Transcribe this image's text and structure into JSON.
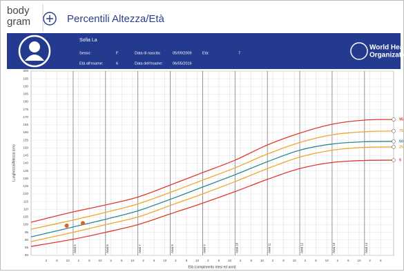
{
  "header": {
    "logo_top": "body",
    "logo_bottom": "gram",
    "title": "Percentili Altezza/Età"
  },
  "patient": {
    "name": "Sofia La",
    "fields": [
      {
        "label": "Sesso:",
        "value": "F"
      },
      {
        "label": "Data di nascita:",
        "value": "05/09/2009"
      },
      {
        "label": "Età:",
        "value": "7"
      },
      {
        "label": "Età all'esame:",
        "value": "6"
      },
      {
        "label": "Data dell'esame:",
        "value": "06/05/2016"
      }
    ]
  },
  "org": {
    "line1": "World Health",
    "line2": "Organization"
  },
  "chart_data": {
    "type": "line",
    "xlabel": "Età (compimento mesi ed anni)",
    "ylabel": "Lunghezza/Altezza (cm)",
    "xlim": [
      3.7,
      14.9
    ],
    "ylim": [
      80,
      200
    ],
    "yticks": [
      80,
      85,
      90,
      95,
      100,
      105,
      110,
      115,
      120,
      125,
      130,
      135,
      140,
      145,
      150,
      155,
      160,
      165,
      170,
      175,
      180,
      185,
      190,
      195,
      200
    ],
    "xticks": [
      {
        "value": 5,
        "label": "Anni 5"
      },
      {
        "value": 6,
        "label": "Anni 6"
      },
      {
        "value": 7,
        "label": "Anni 7"
      },
      {
        "value": 8,
        "label": "Anni 8"
      },
      {
        "value": 9,
        "label": "Anni 9"
      },
      {
        "value": 10,
        "label": "Anni 10"
      },
      {
        "value": 11,
        "label": "Anni 11"
      },
      {
        "value": 12,
        "label": "Anni 12"
      },
      {
        "value": 13,
        "label": "Anni 13"
      },
      {
        "value": 14,
        "label": "Anni 14"
      }
    ],
    "minor_xticks": [
      {
        "value": 4.1667,
        "label": "2"
      },
      {
        "value": 4.5,
        "label": "6"
      },
      {
        "value": 4.8333,
        "label": "10"
      },
      {
        "value": 5.1667,
        "label": "2"
      },
      {
        "value": 5.5,
        "label": "6"
      },
      {
        "value": 5.8333,
        "label": "10"
      },
      {
        "value": 6.1667,
        "label": "2"
      },
      {
        "value": 6.5,
        "label": "6"
      },
      {
        "value": 6.8333,
        "label": "10"
      },
      {
        "value": 7.1667,
        "label": "2"
      },
      {
        "value": 7.5,
        "label": "6"
      },
      {
        "value": 7.8333,
        "label": "10"
      },
      {
        "value": 8.1667,
        "label": "2"
      },
      {
        "value": 8.5,
        "label": "6"
      },
      {
        "value": 8.8333,
        "label": "10"
      },
      {
        "value": 9.1667,
        "label": "2"
      },
      {
        "value": 9.5,
        "label": "6"
      },
      {
        "value": 9.8333,
        "label": "10"
      },
      {
        "value": 10.1667,
        "label": "2"
      },
      {
        "value": 10.5,
        "label": "6"
      },
      {
        "value": 10.8333,
        "label": "10"
      },
      {
        "value": 11.1667,
        "label": "2"
      },
      {
        "value": 11.5,
        "label": "6"
      },
      {
        "value": 11.8333,
        "label": "10"
      },
      {
        "value": 12.1667,
        "label": "2"
      },
      {
        "value": 12.5,
        "label": "6"
      },
      {
        "value": 12.8333,
        "label": "10"
      },
      {
        "value": 13.1667,
        "label": "2"
      },
      {
        "value": 13.5,
        "label": "6"
      },
      {
        "value": 13.8333,
        "label": "10"
      },
      {
        "value": 14.1667,
        "label": "2"
      },
      {
        "value": 14.5,
        "label": "6"
      }
    ],
    "x": [
      3.7,
      5,
      6,
      7,
      8,
      9,
      10,
      11,
      12,
      13,
      14,
      14.9
    ],
    "series": [
      {
        "name": "95",
        "color": "#e2382c",
        "values": [
          101.6,
          108.3,
          112.8,
          118,
          125.8,
          133.9,
          142,
          151.9,
          159.6,
          165.4,
          168.1,
          168.5
        ]
      },
      {
        "name": "75",
        "color": "#f0a52c",
        "values": [
          97,
          103,
          108,
          113.5,
          121,
          129,
          137,
          146,
          153.5,
          158.5,
          160.5,
          161
        ]
      },
      {
        "name": "50",
        "color": "#2b8796",
        "values": [
          92,
          98.5,
          103.5,
          109,
          116.5,
          124.5,
          132.5,
          141,
          148.5,
          152.5,
          154,
          154.2
        ]
      },
      {
        "name": "25",
        "color": "#f0a52c",
        "values": [
          89,
          95,
          100,
          105,
          112.5,
          120,
          128,
          136.5,
          144,
          148.5,
          150.3,
          150.6
        ]
      },
      {
        "name": "5",
        "color": "#e2382c",
        "values": [
          85.8,
          90.5,
          95,
          100,
          107,
          114,
          121.5,
          129.5,
          136.5,
          140.5,
          141.8,
          142
        ]
      }
    ],
    "measurements": {
      "x": [
        4.8,
        5.3
      ],
      "values": [
        99.3,
        101
      ],
      "color": "#d9661a"
    }
  }
}
